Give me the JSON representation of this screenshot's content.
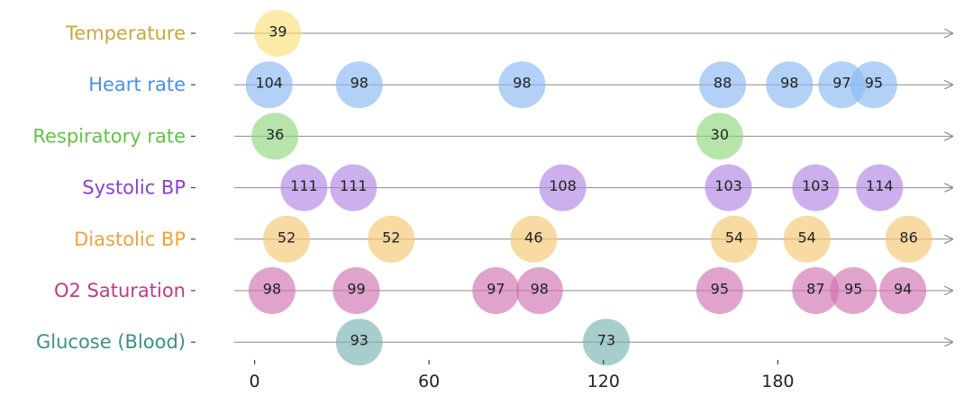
{
  "chart_data": {
    "type": "scatter",
    "title": "",
    "xlabel": "",
    "ylabel": "",
    "xlim": [
      -7,
      240
    ],
    "x_ticks": [
      0,
      60,
      120,
      180
    ],
    "x_tick_labels": [
      "0",
      "60",
      "120",
      "180"
    ],
    "grid": false,
    "legend": "none",
    "series": [
      {
        "name": "Temperature",
        "color": "#c9a83a",
        "bubble": "#fae17a",
        "points": [
          {
            "x": 8,
            "value": "39"
          }
        ]
      },
      {
        "name": "Heart rate",
        "color": "#4a90e8",
        "bubble": "#8ab8f2",
        "points": [
          {
            "x": 5,
            "value": "104"
          },
          {
            "x": 36,
            "value": "98"
          },
          {
            "x": 92,
            "value": "98"
          },
          {
            "x": 161,
            "value": "88"
          },
          {
            "x": 184,
            "value": "98"
          },
          {
            "x": 202,
            "value": "97"
          },
          {
            "x": 213,
            "value": "95"
          }
        ]
      },
      {
        "name": "Respiratory rate",
        "color": "#63c24a",
        "bubble": "#90d67e",
        "points": [
          {
            "x": 7,
            "value": "36"
          },
          {
            "x": 160,
            "value": "30"
          }
        ]
      },
      {
        "name": "Systolic BP",
        "color": "#8a3fd6",
        "bubble": "#b085e3",
        "points": [
          {
            "x": 17,
            "value": "111"
          },
          {
            "x": 34,
            "value": "111"
          },
          {
            "x": 106,
            "value": "108"
          },
          {
            "x": 163,
            "value": "103"
          },
          {
            "x": 193,
            "value": "103"
          },
          {
            "x": 215,
            "value": "114"
          }
        ]
      },
      {
        "name": "Diastolic BP",
        "color": "#f0a23a",
        "bubble": "#f5c671",
        "points": [
          {
            "x": 11,
            "value": "52"
          },
          {
            "x": 47,
            "value": "52"
          },
          {
            "x": 96,
            "value": "46"
          },
          {
            "x": 165,
            "value": "54"
          },
          {
            "x": 190,
            "value": "54"
          },
          {
            "x": 225,
            "value": "86"
          }
        ]
      },
      {
        "name": "O2 Saturation",
        "color": "#c03a8a",
        "bubble": "#cf73b1",
        "points": [
          {
            "x": 6,
            "value": "98"
          },
          {
            "x": 35,
            "value": "99"
          },
          {
            "x": 83,
            "value": "97"
          },
          {
            "x": 98,
            "value": "98"
          },
          {
            "x": 160,
            "value": "95"
          },
          {
            "x": 193,
            "value": "87"
          },
          {
            "x": 206,
            "value": "95"
          },
          {
            "x": 223,
            "value": "94"
          }
        ]
      },
      {
        "name": "Glucose (Blood)",
        "color": "#3a908a",
        "bubble": "#78b4b1",
        "points": [
          {
            "x": 36,
            "value": "93"
          },
          {
            "x": 121,
            "value": "73"
          }
        ]
      }
    ]
  }
}
